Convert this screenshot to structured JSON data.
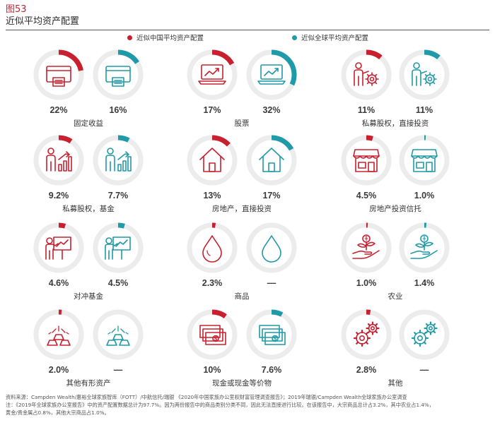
{
  "figure": {
    "number": "图53",
    "title": "近似平均资产配置"
  },
  "legend": {
    "china": "近似中国平均资产配置",
    "global": "近似全球平均资产配置"
  },
  "colors": {
    "china": "#c8202f",
    "global": "#1f9aa8",
    "ring_bg": "#ececec"
  },
  "chart_data": {
    "type": "donut-grid",
    "title": "近似平均资产配置",
    "series": [
      {
        "name": "近似中国平均资产配置",
        "color": "#c8202f"
      },
      {
        "name": "近似全球平均资产配置",
        "color": "#1f9aa8"
      }
    ],
    "categories": [
      {
        "label": "固定收益",
        "icon": "credit-card-icon",
        "china": 22,
        "global": 16,
        "china_text": "22%",
        "global_text": "16%"
      },
      {
        "label": "股票",
        "icon": "laptop-chart-icon",
        "china": 17,
        "global": 32,
        "china_text": "17%",
        "global_text": "32%"
      },
      {
        "label": "私募股权，直接投资",
        "icon": "person-gear-icon",
        "china": 11,
        "global": 11,
        "china_text": "11%",
        "global_text": "11%"
      },
      {
        "label": "私募股权，基金",
        "icon": "person-growth-icon",
        "china": 9.2,
        "global": 7.7,
        "china_text": "9.2%",
        "global_text": "7.7%"
      },
      {
        "label": "房地产，直接投资",
        "icon": "house-icon",
        "china": 13,
        "global": 17,
        "china_text": "13%",
        "global_text": "17%"
      },
      {
        "label": "房地产投资信托",
        "icon": "storefront-icon",
        "china": 4.5,
        "global": 1.0,
        "china_text": "4.5%",
        "global_text": "1.0%"
      },
      {
        "label": "对冲基金",
        "icon": "presenter-board-icon",
        "china": 4.6,
        "global": 4.5,
        "china_text": "4.6%",
        "global_text": "4.5%"
      },
      {
        "label": "商品",
        "icon": "droplet-icon",
        "china": 2.3,
        "global": null,
        "china_text": "2.3%",
        "global_text": "—"
      },
      {
        "label": "农业",
        "icon": "hand-plant-icon",
        "china": 1.0,
        "global": 1.4,
        "china_text": "1.0%",
        "global_text": "1.4%"
      },
      {
        "label": "其他有形资产",
        "icon": "gold-bars-icon",
        "china": 2.0,
        "global": null,
        "china_text": "2.0%",
        "global_text": "—"
      },
      {
        "label": "现金或现金等价物",
        "icon": "cash-stack-icon",
        "china": 10,
        "global": 7.6,
        "china_text": "10%",
        "global_text": "7.6%"
      },
      {
        "label": "其他",
        "icon": "gears-icon",
        "china": 2.8,
        "global": null,
        "china_text": "2.8%",
        "global_text": "—"
      }
    ]
  },
  "source": {
    "line1": "资料来源：Campden Wealth/惠裕全球家族智库（FOTT）/中航信托/瑞银 《2020年中国家族办公室权财富管理调查报告》；2019年瑞银/Campden Wealth全球家族办公室调查",
    "line2": "注：《2019年全球家族办公室报告》中的资产配置数据总计为97.7%。因为两份报告中的商品类别分类不同，因此无法直接进行比较。在该报告中，大宗商品总计占3.2%，其中农业占1.4%，",
    "line3": "黄金/贵金属占0.8%，其他大宗商品占1.0%。"
  }
}
